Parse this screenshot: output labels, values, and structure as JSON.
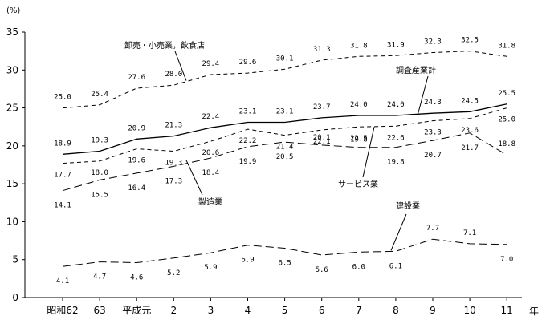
{
  "chart_data": {
    "type": "line",
    "unit": "(%)",
    "x_unit": "年",
    "categories": [
      "昭和62",
      "63",
      "平成元",
      "2",
      "3",
      "4",
      "5",
      "6",
      "7",
      "8",
      "9",
      "10",
      "11"
    ],
    "ylim": [
      0,
      35
    ],
    "yticks": [
      0,
      5,
      10,
      15,
      20,
      25,
      30,
      35
    ],
    "grid": false,
    "legend": "none",
    "series": [
      {
        "name": "卸売・小売業，飲食店",
        "style": "dashed",
        "values": [
          25.0,
          25.4,
          27.6,
          28.0,
          29.4,
          29.6,
          30.1,
          31.3,
          31.8,
          31.9,
          32.3,
          32.5,
          31.8
        ]
      },
      {
        "name": "調査産業計",
        "style": "solid",
        "values": [
          18.9,
          19.3,
          20.9,
          21.3,
          22.4,
          23.1,
          23.1,
          23.7,
          24.0,
          24.0,
          24.3,
          24.5,
          25.5
        ]
      },
      {
        "name": "サービス業",
        "style": "dashed",
        "values": [
          17.7,
          18.0,
          19.6,
          19.3,
          20.6,
          22.2,
          21.4,
          22.1,
          22.5,
          22.6,
          23.3,
          23.6,
          25.0
        ]
      },
      {
        "name": "製造業",
        "style": "longdash",
        "values": [
          14.1,
          15.5,
          16.4,
          17.3,
          18.4,
          19.9,
          20.5,
          20.1,
          19.8,
          19.8,
          20.7,
          21.7,
          18.8
        ]
      },
      {
        "name": "建設業",
        "style": "longdash",
        "values": [
          4.1,
          4.7,
          4.6,
          5.2,
          5.9,
          6.9,
          6.5,
          5.6,
          6.0,
          6.1,
          7.7,
          7.1,
          7.0
        ]
      }
    ],
    "label_text": [
      [
        "25.0",
        "25.4",
        "27.6",
        "28.0",
        "29.4",
        "29.6",
        "30.1",
        "31.3",
        "31.8",
        "31.9",
        "32.3",
        "32.5",
        "31.8"
      ],
      [
        "18.9",
        "19.3",
        "20.9",
        "21.3",
        "22.4",
        "23.1",
        "23.1",
        "23.7",
        "24.0",
        "24.0",
        "24.3",
        "24.5",
        "25.5"
      ],
      [
        "17.7",
        "18.0",
        "19.6",
        "19.3",
        "20.6",
        "22.2",
        "21.4",
        "22.1",
        "22.5",
        "22.6",
        "23.3",
        "23.6",
        "25.0"
      ],
      [
        "14.1",
        "15.5",
        "16.4",
        "17.3",
        "18.4",
        "19.9",
        "20.5",
        "20.1",
        "19.8",
        "19.8",
        "20.7",
        "21.7",
        "18.8"
      ],
      [
        "4.1",
        "4.7",
        "4.6",
        "5.2",
        "5.9",
        "6.9",
        "6.5",
        "5.6",
        "6.0",
        "6.1",
        "7.7",
        "7.1",
        "7.0"
      ]
    ]
  }
}
